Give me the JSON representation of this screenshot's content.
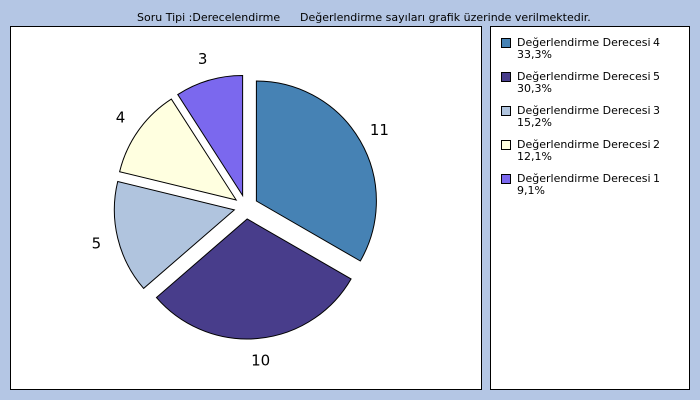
{
  "header": {
    "question_type": "Soru Tipi :Derecelendirme",
    "note": "Değerlendirme sayıları grafik üzerinde verilmektedir."
  },
  "chart_data": {
    "type": "pie",
    "title": "",
    "legend_position": "right",
    "slices": [
      {
        "label": "Değerlendirme Derecesi",
        "category": "4",
        "value": 11,
        "value_label": "11",
        "percent": "33,3%",
        "color": "#4682b4"
      },
      {
        "label": "Değerlendirme Derecesi",
        "category": "5",
        "value": 10,
        "value_label": "10",
        "percent": "30,3%",
        "color": "#483d8b"
      },
      {
        "label": "Değerlendirme Derecesi",
        "category": "3",
        "value": 5,
        "value_label": "5",
        "percent": "15,2%",
        "color": "#b0c4de"
      },
      {
        "label": "Değerlendirme Derecesi",
        "category": "2",
        "value": 4,
        "value_label": "4",
        "percent": "12,1%",
        "color": "#ffffe0"
      },
      {
        "label": "Değerlendirme Derecesi",
        "category": "1",
        "value": 3,
        "value_label": "3",
        "percent": "9,1%",
        "color": "#7b68ee"
      }
    ]
  }
}
